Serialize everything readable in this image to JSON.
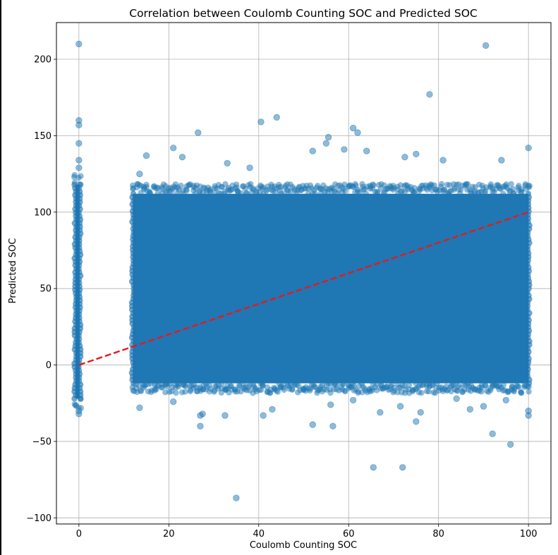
{
  "chart_data": {
    "type": "scatter",
    "title": "Correlation between Coulomb Counting SOC and Predicted SOC",
    "xlabel": "Coulomb Counting SOC",
    "ylabel": "Predicted SOC",
    "xlim": [
      -5,
      105
    ],
    "ylim": [
      -104,
      224
    ],
    "x_ticks": [
      0,
      20,
      40,
      60,
      80,
      100
    ],
    "y_ticks": [
      -100,
      -50,
      0,
      50,
      100,
      150,
      200
    ],
    "y_tick_labels": [
      "−100",
      "−50",
      "0",
      "50",
      "100",
      "150",
      "200"
    ],
    "grid": true,
    "point_color": "#1f77b4",
    "point_alpha": 0.5,
    "dense_regions": [
      {
        "x_range": [
          -0.3,
          0.3
        ],
        "y_range": [
          -22,
          118
        ],
        "description": "vertical band at x=0"
      },
      {
        "x_range": [
          12,
          100
        ],
        "y_range": [
          -12,
          112
        ],
        "description": "dense scattered cloud"
      }
    ],
    "outliers": [
      {
        "x": 0,
        "y": 210
      },
      {
        "x": 0,
        "y": 160
      },
      {
        "x": 0,
        "y": 157
      },
      {
        "x": 0,
        "y": 145
      },
      {
        "x": 0,
        "y": 134
      },
      {
        "x": 0,
        "y": 129
      },
      {
        "x": 0,
        "y": -30
      },
      {
        "x": 0,
        "y": -32
      },
      {
        "x": 90.5,
        "y": 209
      },
      {
        "x": 78,
        "y": 177
      },
      {
        "x": 44,
        "y": 162
      },
      {
        "x": 40.5,
        "y": 159
      },
      {
        "x": 61,
        "y": 155
      },
      {
        "x": 62,
        "y": 152
      },
      {
        "x": 26.5,
        "y": 152
      },
      {
        "x": 55.5,
        "y": 149
      },
      {
        "x": 55,
        "y": 145
      },
      {
        "x": 21,
        "y": 142
      },
      {
        "x": 52,
        "y": 140
      },
      {
        "x": 100,
        "y": 142
      },
      {
        "x": 59,
        "y": 141
      },
      {
        "x": 64,
        "y": 140
      },
      {
        "x": 15,
        "y": 137
      },
      {
        "x": 23,
        "y": 136
      },
      {
        "x": 72.5,
        "y": 136
      },
      {
        "x": 75,
        "y": 138
      },
      {
        "x": 81,
        "y": 134
      },
      {
        "x": 94,
        "y": 134
      },
      {
        "x": 33,
        "y": 132
      },
      {
        "x": 13.5,
        "y": 125
      },
      {
        "x": 38,
        "y": 129
      },
      {
        "x": 35,
        "y": -87
      },
      {
        "x": 65.5,
        "y": -67
      },
      {
        "x": 72,
        "y": -67
      },
      {
        "x": 96,
        "y": -52
      },
      {
        "x": 92,
        "y": -45
      },
      {
        "x": 27,
        "y": -40
      },
      {
        "x": 52,
        "y": -39
      },
      {
        "x": 56.5,
        "y": -40
      },
      {
        "x": 75,
        "y": -37
      },
      {
        "x": 27,
        "y": -33
      },
      {
        "x": 27.5,
        "y": -32
      },
      {
        "x": 41,
        "y": -33
      },
      {
        "x": 32.5,
        "y": -33
      },
      {
        "x": 13.5,
        "y": -28
      },
      {
        "x": 43,
        "y": -29
      },
      {
        "x": 67,
        "y": -31
      },
      {
        "x": 76,
        "y": -31
      },
      {
        "x": 87,
        "y": -29
      },
      {
        "x": 100,
        "y": -33
      },
      {
        "x": 100,
        "y": -30
      },
      {
        "x": 21,
        "y": -24
      },
      {
        "x": 56,
        "y": -26
      },
      {
        "x": 61,
        "y": -23
      },
      {
        "x": 84,
        "y": -22
      },
      {
        "x": 90,
        "y": -27
      },
      {
        "x": 95,
        "y": -23
      },
      {
        "x": 71.5,
        "y": -27
      }
    ],
    "reference_line": {
      "x": [
        0,
        100
      ],
      "y": [
        0,
        100
      ],
      "color": "#e41a1c",
      "style": "dashed"
    }
  }
}
